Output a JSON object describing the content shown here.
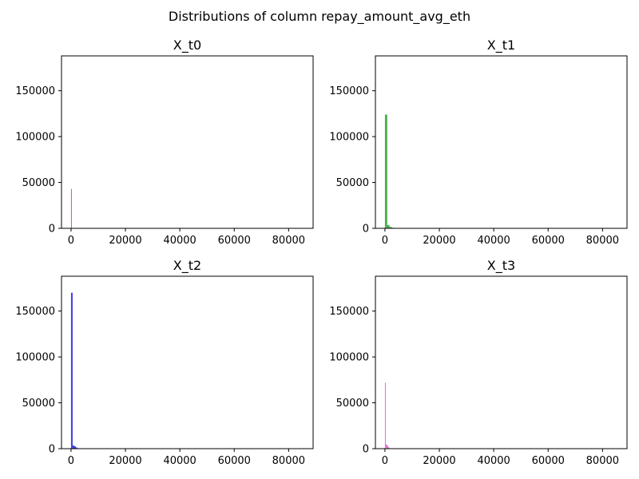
{
  "figure": {
    "title": "Distributions of column repay_amount_avg_eth"
  },
  "chart_data": [
    {
      "type": "bar",
      "title": "X_t0",
      "color": "#e03b3b",
      "xlim": [
        -3500,
        89000
      ],
      "ylim": [
        0,
        188000
      ],
      "xticks": [
        0,
        20000,
        40000,
        60000,
        80000
      ],
      "yticks": [
        0,
        50000,
        100000,
        150000
      ],
      "grid": false,
      "bins": [
        {
          "x0": 0,
          "x1": 300,
          "value": 43000
        }
      ]
    },
    {
      "type": "bar",
      "title": "X_t1",
      "color": "#2ca02c",
      "xlim": [
        -3500,
        89000
      ],
      "ylim": [
        0,
        188000
      ],
      "xticks": [
        0,
        20000,
        40000,
        60000,
        80000
      ],
      "yticks": [
        0,
        50000,
        100000,
        150000
      ],
      "grid": false,
      "bins": [
        {
          "x0": 0,
          "x1": 850,
          "value": 124000
        },
        {
          "x0": 850,
          "x1": 1700,
          "value": 3500
        },
        {
          "x0": 1700,
          "x1": 2550,
          "value": 1500
        },
        {
          "x0": 2550,
          "x1": 3400,
          "value": 600
        }
      ]
    },
    {
      "type": "bar",
      "title": "X_t2",
      "color": "#1f1fe0",
      "xlim": [
        -3500,
        89000
      ],
      "ylim": [
        0,
        188000
      ],
      "xticks": [
        0,
        20000,
        40000,
        60000,
        80000
      ],
      "yticks": [
        0,
        50000,
        100000,
        150000
      ],
      "grid": false,
      "bins": [
        {
          "x0": 0,
          "x1": 600,
          "value": 170000
        },
        {
          "x0": 600,
          "x1": 1200,
          "value": 3500
        },
        {
          "x0": 1200,
          "x1": 1800,
          "value": 2500
        },
        {
          "x0": 1800,
          "x1": 2400,
          "value": 1200
        },
        {
          "x0": 2400,
          "x1": 3000,
          "value": 500
        }
      ]
    },
    {
      "type": "bar",
      "title": "X_t3",
      "color": "#d85bd8",
      "xlim": [
        -3500,
        89000
      ],
      "ylim": [
        0,
        188000
      ],
      "xticks": [
        0,
        20000,
        40000,
        60000,
        80000
      ],
      "yticks": [
        0,
        50000,
        100000,
        150000
      ],
      "grid": false,
      "bins": [
        {
          "x0": 0,
          "x1": 300,
          "value": 72000
        },
        {
          "x0": 300,
          "x1": 600,
          "value": 5000
        },
        {
          "x0": 600,
          "x1": 900,
          "value": 4000
        },
        {
          "x0": 900,
          "x1": 1200,
          "value": 3000
        },
        {
          "x0": 1200,
          "x1": 1500,
          "value": 1500
        },
        {
          "x0": 1500,
          "x1": 1800,
          "value": 800
        },
        {
          "x0": 1800,
          "x1": 2100,
          "value": 300
        }
      ]
    }
  ]
}
